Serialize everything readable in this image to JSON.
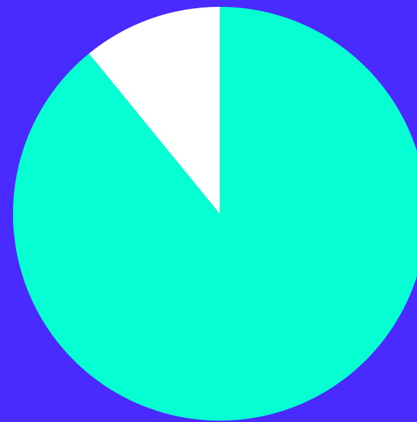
{
  "colors": {
    "background": "#4a2bff",
    "slice_primary": "#05ffd2",
    "slice_secondary": "#ffffff"
  },
  "chart_data": {
    "type": "pie",
    "slices": [
      {
        "value": 89.1,
        "color": "#05ffd2"
      },
      {
        "value": 10.9,
        "color": "#ffffff"
      }
    ],
    "start": "top",
    "direction": "clockwise",
    "title": "",
    "legend": "none"
  }
}
